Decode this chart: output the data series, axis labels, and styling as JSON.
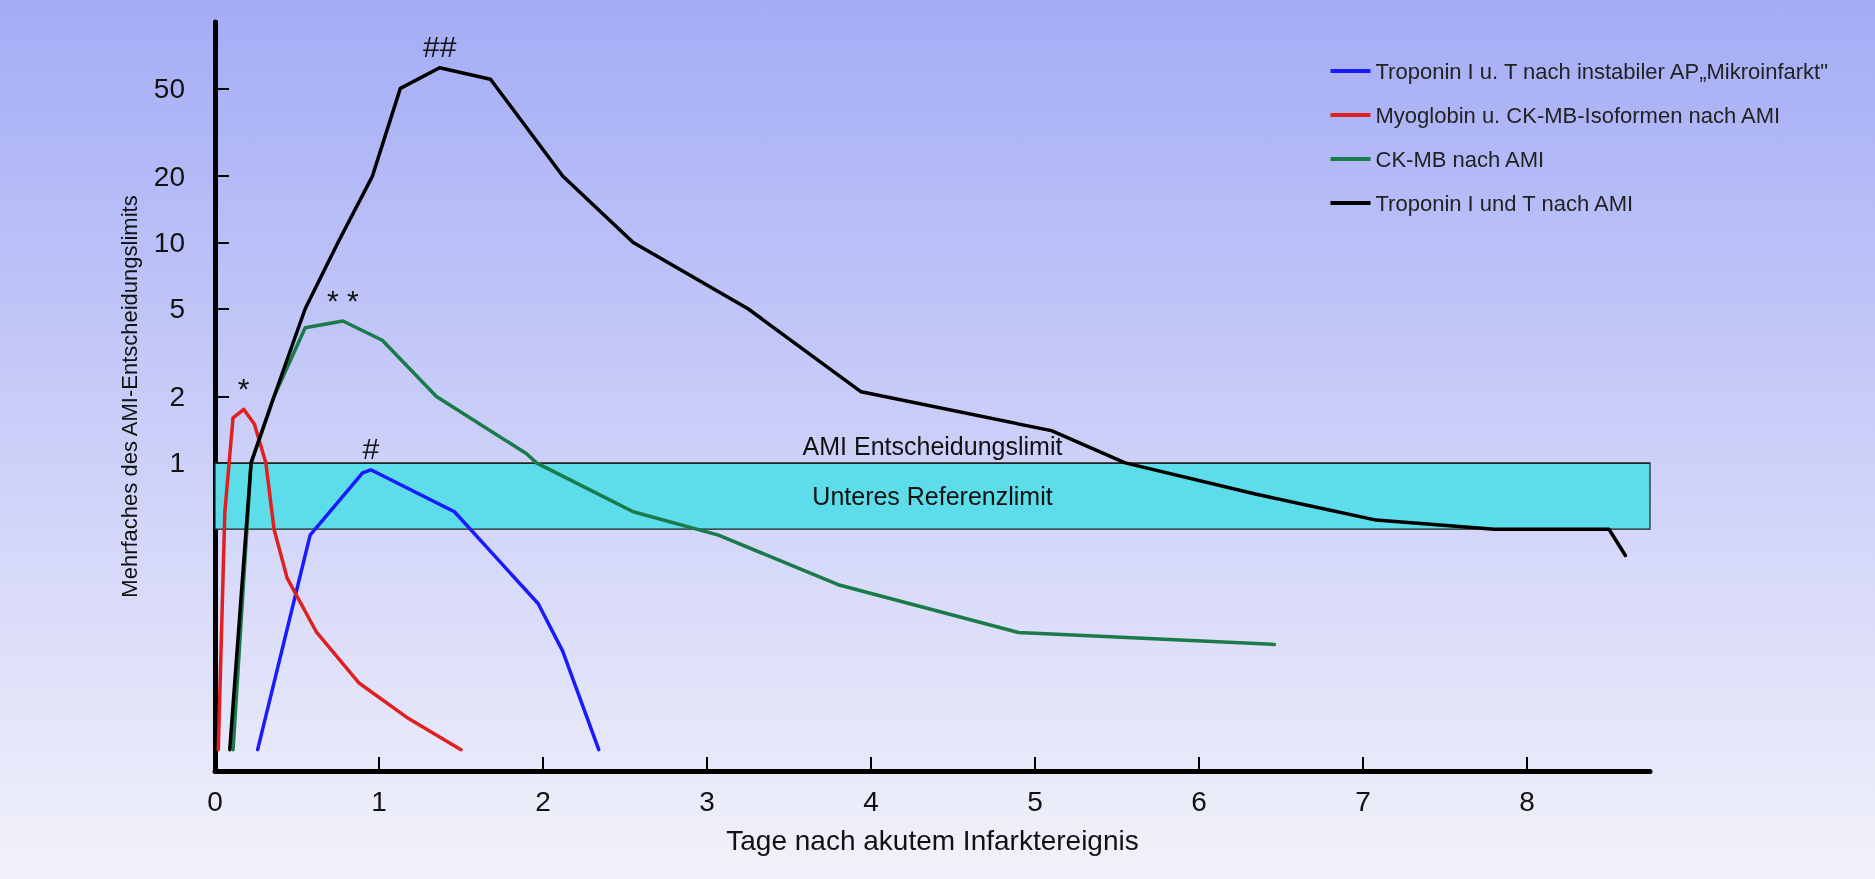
{
  "chart_data": {
    "type": "line",
    "xlabel": "Tage nach akutem Infarktereignis",
    "ylabel": "Mehrfaches des AMI-Entscheidungslimits",
    "log": "y",
    "xlim": [
      0,
      8.75
    ],
    "xticks": [
      0,
      1,
      2,
      3,
      4,
      5,
      6,
      7,
      8
    ],
    "ylim": [
      0.04,
      100
    ],
    "yticks": [
      1,
      2,
      5,
      10,
      20,
      50
    ],
    "grid": false,
    "legend": "top right",
    "marker": "none",
    "line_style": "solid",
    "series": [
      {
        "name": "Troponin I u. T nach instabiler AP„Mikroinfarkt\"",
        "color": "#1a1aff",
        "x": [
          0.26,
          0.58,
          0.9,
          0.95,
          1.46,
          1.97,
          2.12,
          2.34
        ],
        "values": [
          0.05,
          0.47,
          0.9,
          0.93,
          0.6,
          0.23,
          0.14,
          0.05
        ]
      },
      {
        "name": "Myoglobin u. CK-MB-Isoformen nach AMI",
        "color": "#e02020",
        "x": [
          0.02,
          0.06,
          0.11,
          0.175,
          0.24,
          0.31,
          0.36,
          0.44,
          0.62,
          0.88,
          1.17,
          1.5
        ],
        "values": [
          0.05,
          0.6,
          1.6,
          1.75,
          1.5,
          1,
          0.5,
          0.3,
          0.17,
          0.1,
          0.07,
          0.05
        ]
      },
      {
        "name": "CK-MB nach AMI",
        "color": "#1a7a4a",
        "x": [
          0.11,
          0.22,
          0.36,
          0.55,
          0.78,
          1.02,
          1.35,
          1.9,
          1.96,
          2.55,
          3.07,
          3.8,
          4.9,
          6.46
        ],
        "values": [
          0.05,
          1,
          2,
          4.1,
          4.4,
          3.6,
          2,
          1.1,
          1,
          0.6,
          0.47,
          0.28,
          0.17,
          0.15
        ]
      },
      {
        "name": "Troponin I und T nach AMI",
        "color": "#000000",
        "x": [
          0.09,
          0.22,
          0.36,
          0.55,
          0.75,
          0.96,
          1.13,
          1.37,
          1.68,
          2.12,
          2.55,
          3.25,
          3.94,
          5.1,
          5.55,
          6.35,
          7.08,
          7.8,
          8.5,
          8.6
        ],
        "values": [
          0.05,
          1,
          2,
          5,
          10,
          20,
          50,
          62,
          55,
          20,
          10,
          5,
          2.1,
          1.4,
          1,
          0.72,
          0.55,
          0.5,
          0.5,
          0.38
        ]
      }
    ],
    "bands": [
      {
        "axis": "y",
        "from": 0.5,
        "to": 1,
        "label": "Unteres Referenzlimit",
        "color": "#5ddde9"
      }
    ],
    "ref_lines": [
      {
        "axis": "y",
        "value": 1,
        "label": "AMI Entscheidungslimit"
      }
    ],
    "annotations": [
      {
        "text": "#",
        "x": 0.95,
        "y": 0.93
      },
      {
        "text": "*",
        "x": 0.175,
        "y": 1.75
      },
      {
        "text": "* *",
        "x": 0.78,
        "y": 4.4
      },
      {
        "text": "##",
        "x": 1.37,
        "y": 62
      }
    ]
  }
}
